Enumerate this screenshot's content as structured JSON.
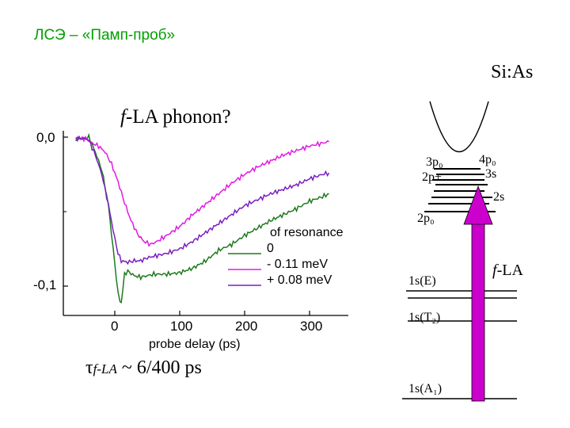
{
  "slide": {
    "title": "ЛСЭ – «Памп-проб»",
    "sample": "Si:As",
    "tau_formula": {
      "prefix": "τ",
      "sub": "f-LA",
      "rest": " ~ 6/400 ps"
    }
  },
  "chart_data": {
    "type": "line",
    "title": "f-LA phonon?",
    "title_italic_part": "f",
    "title_rest": "-LA phonon?",
    "xlabel": "probe delay (ps)",
    "ylabel": "",
    "xlim": [
      -60,
      340
    ],
    "ylim": [
      -0.115,
      0.01
    ],
    "x_ticks": [
      0,
      100,
      200,
      300
    ],
    "x_tick_labels": [
      "0",
      "100",
      "200",
      "300"
    ],
    "y_ticks": [
      0,
      -0.1
    ],
    "y_tick_labels": [
      "0,0",
      "-0,1"
    ],
    "legend_title": "of resonance",
    "series": [
      {
        "name": "0",
        "color": "#1e7a1e",
        "x": [
          -60,
          -45,
          -40,
          -30,
          -20,
          -10,
          0,
          5,
          8,
          10,
          15,
          20,
          30,
          40,
          50,
          60,
          80,
          100,
          120,
          140,
          160,
          180,
          200,
          220,
          240,
          260,
          280,
          300,
          320,
          330
        ],
        "y": [
          -0.001,
          -0.001,
          0.0,
          -0.01,
          -0.022,
          -0.045,
          -0.085,
          -0.105,
          -0.111,
          -0.111,
          -0.092,
          -0.09,
          -0.093,
          -0.094,
          -0.093,
          -0.092,
          -0.092,
          -0.091,
          -0.088,
          -0.083,
          -0.076,
          -0.072,
          -0.066,
          -0.061,
          -0.056,
          -0.052,
          -0.048,
          -0.043,
          -0.04,
          -0.038
        ]
      },
      {
        "name": "- 0.11 meV",
        "color": "#e21ae2",
        "x": [
          -60,
          -45,
          -35,
          -25,
          -15,
          -5,
          5,
          15,
          25,
          35,
          45,
          55,
          65,
          80,
          100,
          120,
          140,
          160,
          180,
          200,
          220,
          240,
          260,
          280,
          300,
          320,
          330
        ],
        "y": [
          -0.001,
          -0.001,
          -0.004,
          -0.006,
          -0.01,
          -0.018,
          -0.03,
          -0.044,
          -0.056,
          -0.065,
          -0.07,
          -0.072,
          -0.07,
          -0.066,
          -0.06,
          -0.052,
          -0.045,
          -0.038,
          -0.031,
          -0.025,
          -0.02,
          -0.016,
          -0.012,
          -0.009,
          -0.006,
          -0.004,
          -0.003
        ]
      },
      {
        "name": "+ 0.08 meV",
        "color": "#7a1fc0",
        "x": [
          -60,
          -45,
          -40,
          -30,
          -20,
          -10,
          0,
          5,
          10,
          20,
          30,
          40,
          50,
          60,
          80,
          100,
          120,
          140,
          160,
          180,
          200,
          220,
          240,
          260,
          280,
          300,
          320,
          330
        ],
        "y": [
          -0.001,
          -0.001,
          -0.002,
          -0.012,
          -0.025,
          -0.045,
          -0.068,
          -0.078,
          -0.083,
          -0.084,
          -0.083,
          -0.083,
          -0.081,
          -0.08,
          -0.078,
          -0.075,
          -0.07,
          -0.064,
          -0.058,
          -0.052,
          -0.046,
          -0.042,
          -0.038,
          -0.035,
          -0.032,
          -0.028,
          -0.025,
          -0.024
        ]
      }
    ]
  },
  "energy_diagram": {
    "levels": [
      {
        "label": "3p₀"
      },
      {
        "label": "4p₀"
      },
      {
        "label": "2p±"
      },
      {
        "label": "3s"
      },
      {
        "label": "2s"
      },
      {
        "label": "2p₀"
      },
      {
        "label": "1s(E)"
      },
      {
        "label": "1s(T₂)"
      },
      {
        "label": "1s(A₁)"
      }
    ],
    "arrow_label_italic": "f",
    "arrow_label_rest": "-LA",
    "arrow_color": "#cc00cc"
  }
}
